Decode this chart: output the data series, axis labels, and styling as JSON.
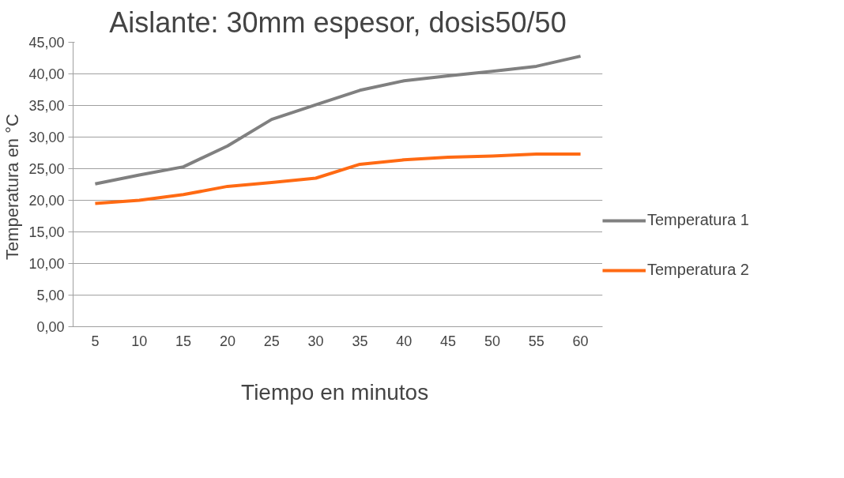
{
  "chart_data": {
    "type": "line",
    "title": "Aislante: 30mm espesor, dosis50/50",
    "xlabel": "Tiempo  en minutos",
    "ylabel": "Temperatura en  °C",
    "categories": [
      "5",
      "10",
      "15",
      "20",
      "25",
      "30",
      "35",
      "40",
      "45",
      "50",
      "55",
      "60"
    ],
    "series": [
      {
        "name": "Temperatura 1",
        "color": "#808080",
        "values": [
          22.6,
          24.0,
          25.3,
          28.6,
          32.8,
          35.1,
          37.4,
          38.9,
          39.7,
          40.4,
          41.2,
          42.8
        ]
      },
      {
        "name": "Temperatura 2",
        "color": "#ff6a13",
        "values": [
          19.5,
          20.0,
          20.9,
          22.2,
          22.8,
          23.5,
          25.7,
          26.4,
          26.8,
          27.0,
          27.3,
          27.3
        ]
      }
    ],
    "ylim": [
      0,
      45
    ],
    "yticks": [
      {
        "value": 0,
        "label": "0,00"
      },
      {
        "value": 5,
        "label": "5,00"
      },
      {
        "value": 10,
        "label": "10,00"
      },
      {
        "value": 15,
        "label": "15,00"
      },
      {
        "value": 20,
        "label": "20,00"
      },
      {
        "value": 25,
        "label": "25,00"
      },
      {
        "value": 30,
        "label": "30,00"
      },
      {
        "value": 35,
        "label": "35,00"
      },
      {
        "value": 40,
        "label": "40,00"
      },
      {
        "value": 45,
        "label": "45,00"
      }
    ],
    "grid": "y",
    "legend": "right",
    "marker": "none",
    "line_style": "solid"
  }
}
